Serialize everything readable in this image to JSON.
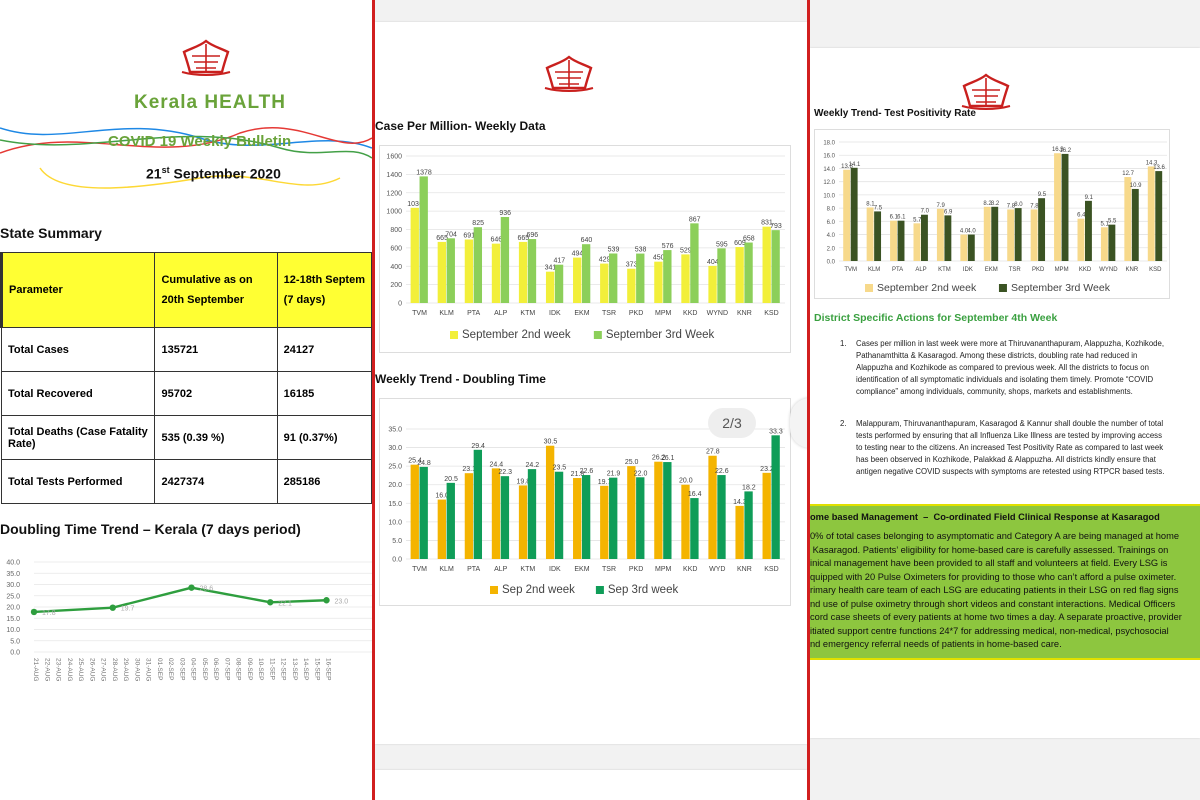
{
  "panel1": {
    "brand": "Kerala HEALTH",
    "bulletin_title": "COVID 19 Weekly Bulletin",
    "date_main": "21",
    "date_sup": "st",
    "date_rest": " September 2020",
    "state_summary": "State Summary",
    "table": {
      "headers": [
        "Parameter",
        "Cumulative as on",
        "20th September",
        "12-18th Septem",
        "(7 days)"
      ],
      "rows": [
        [
          "Total Cases",
          "135721",
          "24127"
        ],
        [
          "Total Recovered",
          "95702",
          "16185"
        ],
        [
          "Total Deaths (Case Fatality Rate)",
          "535 (0.39 %)",
          "91 (0.37%)"
        ],
        [
          "Total Tests Performed",
          "2427374",
          "285186"
        ]
      ]
    },
    "doubling_title": "Doubling Time Trend – Kerala (7 days period)"
  },
  "panel2": {
    "pager": "2/3",
    "chart1_title": "Case Per Million- Weekly Data",
    "chart2_title": "Weekly Trend - Doubling Time"
  },
  "panel3": {
    "chart3_title": "Weekly Trend- Test Positivity Rate",
    "district_title": "District Specific Actions for September 4th Week",
    "item1_num": "1.",
    "item1": "Cases per million in last week were more at Thiruvananthapuram, Alappuzha, Kozhikode, Pathanamthitta & Kasaragod. Among these districts, doubling rate had reduced in Alappuzha and Kozhikode as compared to previous week. All the districts to focus on identification of all symptomatic individuals and isolating them timely. Promote “COVID compliance” among individuals, community, shops, markets and establishments.",
    "item2_num": "2.",
    "item2": "Malappuram, Thiruvananthapuram, Kasaragod & Kannur shall double the number of total tests performed by ensuring that all Influenza Like Illness are tested by improving access to testing near to the citizens. An increased Test Positivity Rate as compared to last week has been observed in Kozhikode, Palakkad & Alappuzha. All districts kindly ensure that antigen negative COVID suspects with symptoms are retested using RTPCR based tests.",
    "green_title": "ome based Management  –  Co-ordinated Field Clinical Response at Kasaragod",
    "green_lines": [
      "0% of total cases belonging to asymptomatic and Category A are being managed at home",
      " Kasaragod. Patients’ eligibility for home-based care is carefully assessed. Trainings on",
      "inical management have been provided to all staff and volunteers at field. Every LSG is",
      "quipped with 20 Pulse Oximeters for providing to those who can’t afford a pulse oximeter.",
      "rimary health care team of each LSG are educating patients in their LSG on red flag signs",
      "nd use of pulse oximetry through short videos and constant interactions. Medical Officers",
      "cord case sheets of every patients at home two times a day. A separate proactive, provider",
      "itiated support centre functions 24*7 for addressing medical, non-medical, psychosocial",
      "nd emergency referral needs of patients in home-based care."
    ]
  },
  "chart_data": [
    {
      "type": "line",
      "title": "Doubling Time Trend – Kerala (7 days period)",
      "x": [
        "21-AUG",
        "22-AUG",
        "23-AUG",
        "24-AUG",
        "25-AUG",
        "26-AUG",
        "27-AUG",
        "28-AUG",
        "29-AUG",
        "30-AUG",
        "31-AUG",
        "01-SEP",
        "02-SEP",
        "03-SEP",
        "04-SEP",
        "05-SEP",
        "06-SEP",
        "07-SEP",
        "08-SEP",
        "09-SEP",
        "10-SEP",
        "11-SEP",
        "12-SEP",
        "13-SEP",
        "14-SEP",
        "15-SEP",
        "16-SEP"
      ],
      "points": [
        [
          0,
          17.8
        ],
        [
          7,
          19.7
        ],
        [
          14,
          28.6
        ],
        [
          21,
          22.1
        ],
        [
          26,
          23.0
        ]
      ],
      "yticks": [
        "40.0",
        "35.0",
        "30.0",
        "25.0",
        "20.0",
        "15.0",
        "10.0",
        "5.0",
        "0.0"
      ],
      "ylim": [
        0,
        40
      ],
      "color": "#2e9e3e"
    },
    {
      "type": "bar",
      "title": "Case Per Million- Weekly Data",
      "categories": [
        "TVM",
        "KLM",
        "PTA",
        "ALP",
        "KTM",
        "IDK",
        "EKM",
        "TSR",
        "PKD",
        "MPM",
        "KKD",
        "WYND",
        "KNR",
        "KSD"
      ],
      "series": [
        {
          "name": "September 2nd week",
          "color": "#f2ef3a",
          "values": [
            1036,
            665,
            691,
            646,
            665,
            341,
            494,
            429,
            373,
            450,
            529,
            404,
            609,
            831
          ]
        },
        {
          "name": "September 3rd Week",
          "color": "#8ccf5a",
          "values": [
            1378,
            704,
            825,
            936,
            696,
            417,
            640,
            539,
            538,
            576,
            867,
            595,
            658,
            793
          ]
        }
      ],
      "yticks": [
        "1600",
        "1400",
        "1200",
        "1000",
        "800",
        "600",
        "400",
        "200",
        "0"
      ],
      "ylim": [
        0,
        1600
      ]
    },
    {
      "type": "bar",
      "title": "Weekly Trend - Doubling Time",
      "categories": [
        "TVM",
        "KLM",
        "PTA",
        "ALP",
        "KTM",
        "IDK",
        "EKM",
        "TSR",
        "PKD",
        "MPM",
        "KKD",
        "WYD",
        "KNR",
        "KSD"
      ],
      "series": [
        {
          "name": "Sep 2nd week",
          "color": "#f4b400",
          "values": [
            25.4,
            16.0,
            23.1,
            24.4,
            19.8,
            30.5,
            21.8,
            19.7,
            25.0,
            26.2,
            20.0,
            27.8,
            14.3,
            23.2
          ]
        },
        {
          "name": "Sep 3rd week",
          "color": "#0f9d58",
          "values": [
            24.8,
            20.5,
            29.4,
            22.3,
            24.2,
            23.5,
            22.6,
            21.9,
            22.0,
            26.1,
            16.4,
            22.6,
            18.2,
            33.3
          ]
        }
      ],
      "labels1": [
        "25.4",
        "16.0",
        "23.1",
        "24.4",
        "19.8",
        "30.5",
        "21.8",
        "19.7",
        "25.0",
        "26.2",
        "20.0",
        "27.8",
        "14.3",
        "23.2"
      ],
      "labels2": [
        "24.8",
        "20.5",
        "29.4",
        "22.3",
        "24.2",
        "23.5",
        "22.6",
        "21.9",
        "22.0",
        "26.1",
        "16.4",
        "22.6",
        "18.2",
        "33.3"
      ],
      "yticks": [
        "35.0",
        "30.0",
        "25.0",
        "20.0",
        "15.0",
        "10.0",
        "5.0",
        "0.0"
      ],
      "ylim": [
        0,
        35
      ]
    },
    {
      "type": "bar",
      "title": "Weekly Trend- Test Positivity Rate",
      "categories": [
        "TVM",
        "KLM",
        "PTA",
        "ALP",
        "KTM",
        "IDK",
        "EKM",
        "TSR",
        "PKD",
        "MPM",
        "KKD",
        "WYND",
        "KNR",
        "KSD"
      ],
      "series": [
        {
          "name": "September 2nd week",
          "color": "#f7d98b",
          "values": [
            13.8,
            8.1,
            6.1,
            5.7,
            7.9,
            4.0,
            8.2,
            7.8,
            7.8,
            16.3,
            6.4,
            5.1,
            12.7,
            14.3
          ]
        },
        {
          "name": "September 3rd Week",
          "color": "#3b5323",
          "values": [
            14.1,
            7.5,
            6.1,
            7.0,
            6.9,
            4.0,
            8.2,
            8.0,
            9.5,
            16.2,
            9.1,
            5.5,
            10.9,
            13.6
          ]
        }
      ],
      "labels1": [
        "13.8",
        "8.1",
        "6.1",
        "5.7",
        "7.9",
        "4.0",
        "8.2",
        "7.8",
        "7.8",
        "16.3",
        "6.4",
        "5.1",
        "12.7",
        "14.3"
      ],
      "labels2": [
        "14.1",
        "7.5",
        "6.1",
        "7.0",
        "6.9",
        "4.0",
        "8.2",
        "8.0",
        "9.5",
        "16.2",
        "9.1",
        "5.5",
        "10.9",
        "13.6"
      ],
      "yticks": [
        "18.0",
        "16.0",
        "14.0",
        "12.0",
        "10.0",
        "8.0",
        "6.0",
        "4.0",
        "2.0",
        "0.0"
      ],
      "ylim": [
        0,
        18
      ]
    }
  ]
}
